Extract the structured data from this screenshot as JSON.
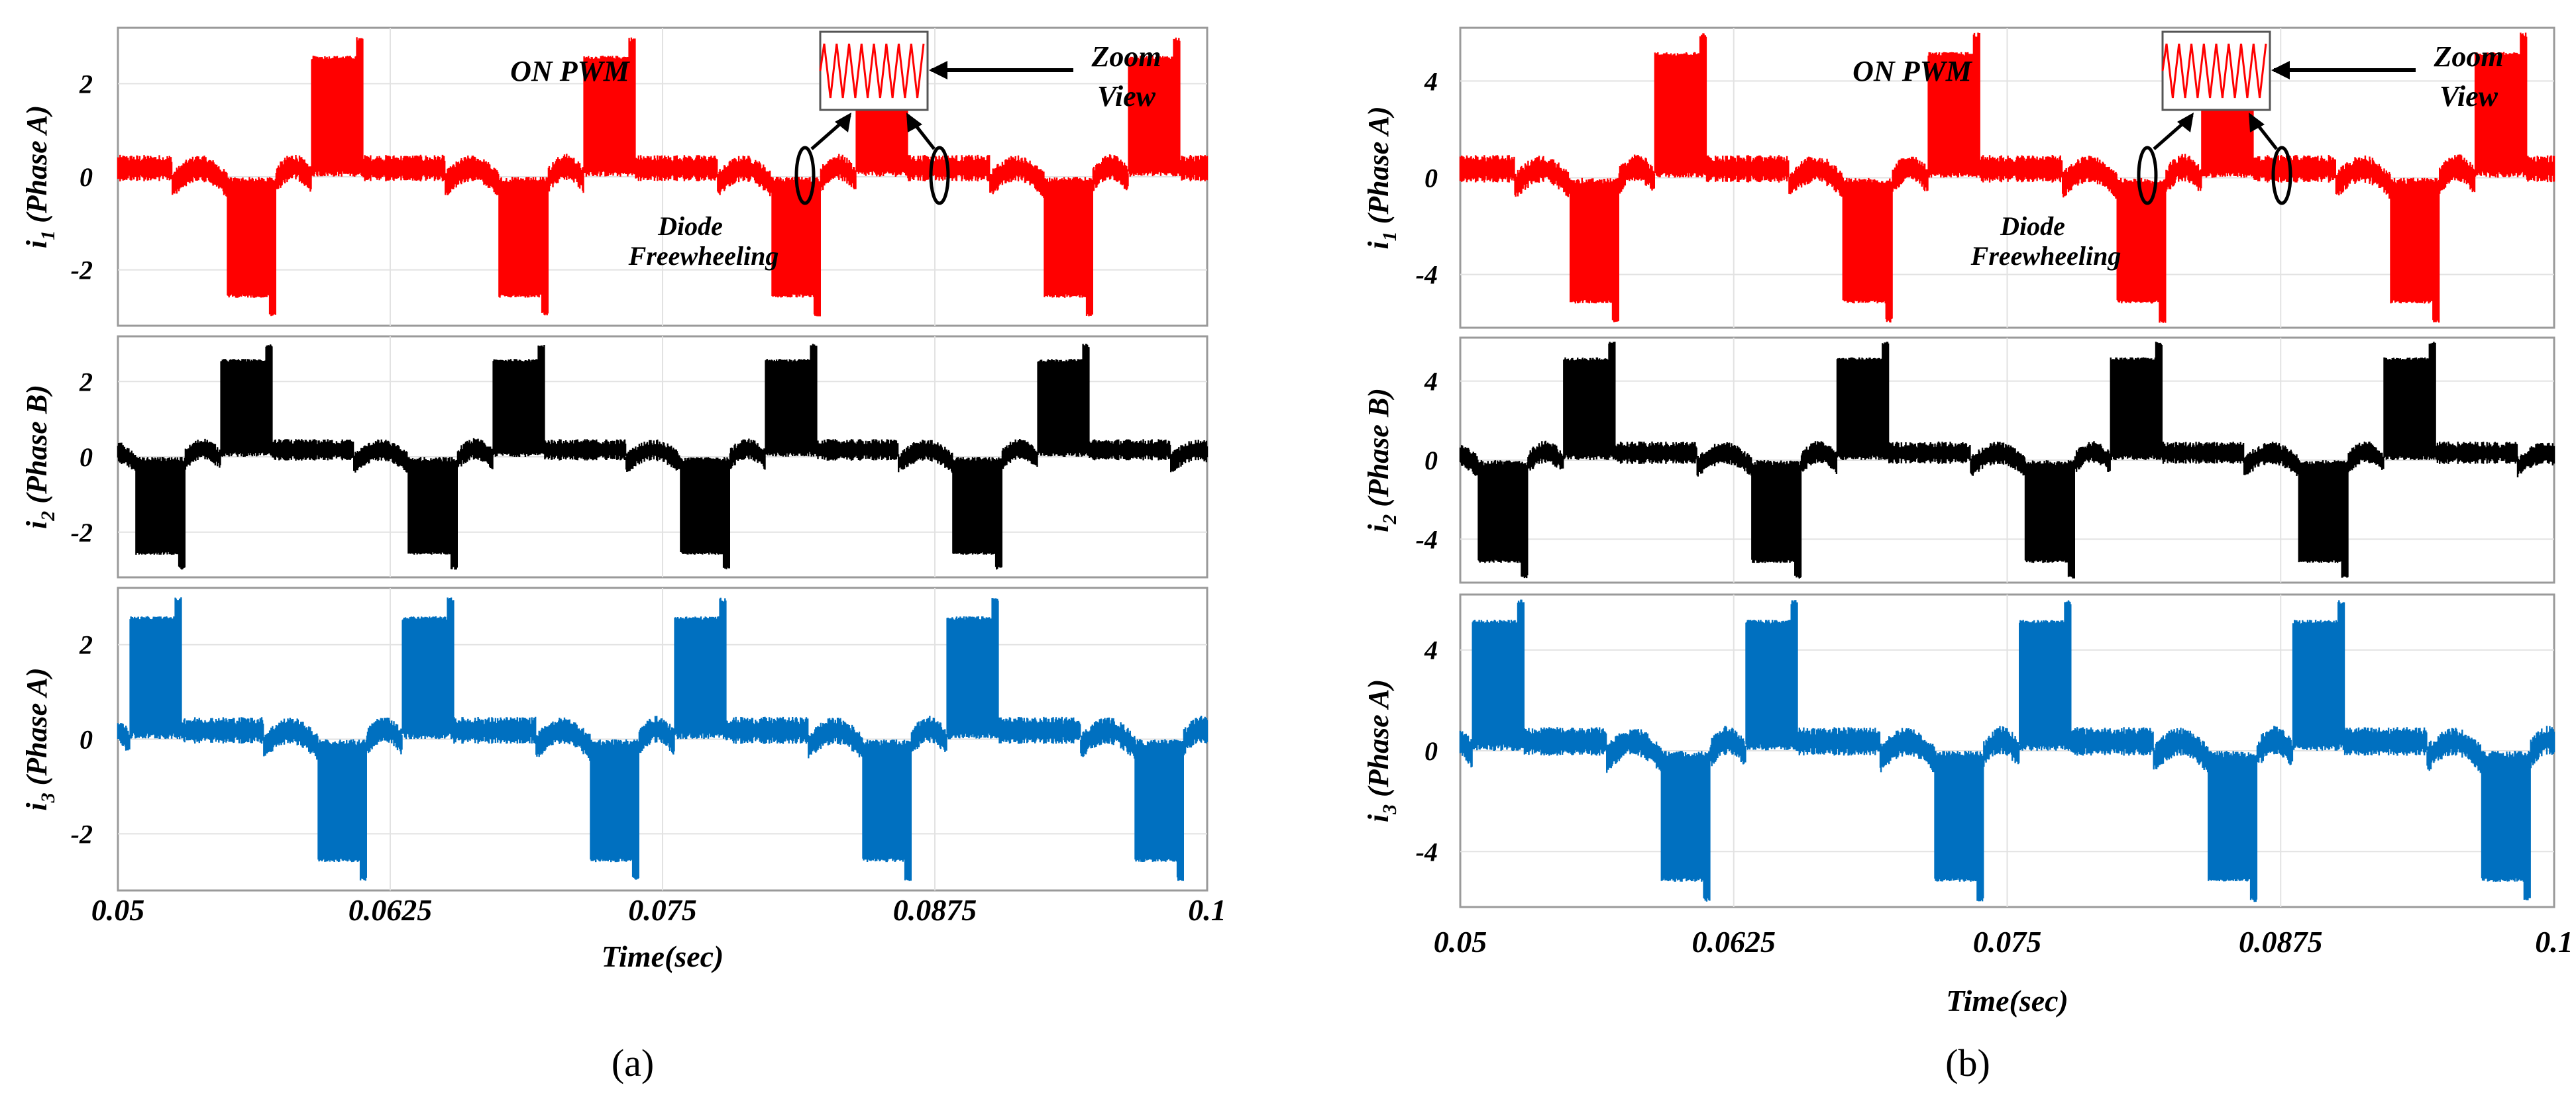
{
  "chart_data": [
    {
      "panel": "a",
      "caption": "(a)",
      "type": "line",
      "xlabel": "Time(sec)",
      "xticks": [
        "0.05",
        "0.0625",
        "0.075",
        "0.0875",
        "0.1"
      ],
      "xlim": [
        0.05,
        0.1
      ],
      "period": 0.0125,
      "subplots": [
        {
          "name": "i1",
          "ylabel_main": "i",
          "ylabel_sub": "1",
          "ylabel_rest": " (Phase A)",
          "color": "#ff0000",
          "ylim": [
            -3.2,
            3.2
          ],
          "yticks": [
            "2",
            "0",
            "-2"
          ],
          "amplitude": 2.6,
          "spike": 3.0,
          "offset": 0.0
        },
        {
          "name": "i2",
          "ylabel_main": "i",
          "ylabel_sub": "2",
          "ylabel_rest": " (Phase B)",
          "color": "#000000",
          "ylim": [
            -3.2,
            3.2
          ],
          "yticks": [
            "2",
            "0",
            "-2"
          ],
          "amplitude": 2.6,
          "spike": 3.0,
          "offset": -0.004167
        },
        {
          "name": "i3",
          "ylabel_main": "i",
          "ylabel_sub": "3",
          "ylabel_rest": " (Phase A)",
          "color": "#0070c0",
          "ylim": [
            -3.2,
            3.2
          ],
          "yticks": [
            "2",
            "0",
            "-2"
          ],
          "amplitude": 2.6,
          "spike": 3.0,
          "offset": -0.008333
        }
      ],
      "annotations": {
        "on_pwm": "ON PWM",
        "zoom_line1": "Zoom",
        "zoom_line2": "View",
        "diode_line1": "Diode",
        "diode_line2": "Freewheeling"
      }
    },
    {
      "panel": "b",
      "caption": "(b)",
      "type": "line",
      "xlabel": "Time(sec)",
      "xticks": [
        "0.05",
        "0.0625",
        "0.075",
        "0.0875",
        "0.1"
      ],
      "xlim": [
        0.05,
        0.1
      ],
      "period": 0.0125,
      "subplots": [
        {
          "name": "i1",
          "ylabel_main": "i",
          "ylabel_sub": "1",
          "ylabel_rest": " (Phase A)",
          "color": "#ff0000",
          "ylim": [
            -6.2,
            6.2
          ],
          "yticks": [
            "4",
            "0",
            "-4"
          ],
          "amplitude": 5.2,
          "spike": 6.0,
          "offset": 0.0
        },
        {
          "name": "i2",
          "ylabel_main": "i",
          "ylabel_sub": "2",
          "ylabel_rest": " (Phase B)",
          "color": "#000000",
          "ylim": [
            -6.2,
            6.2
          ],
          "yticks": [
            "4",
            "0",
            "-4"
          ],
          "amplitude": 5.2,
          "spike": 6.0,
          "offset": -0.004167
        },
        {
          "name": "i3",
          "ylabel_main": "i",
          "ylabel_sub": "3",
          "ylabel_rest": " (Phase A)",
          "color": "#0070c0",
          "ylim": [
            -6.2,
            6.2
          ],
          "yticks": [
            "4",
            "0",
            "-4"
          ],
          "amplitude": 5.2,
          "spike": 6.0,
          "offset": -0.008333
        }
      ],
      "annotations": {
        "on_pwm": "ON PWM",
        "zoom_line1": "Zoom",
        "zoom_line2": "View",
        "diode_line1": "Diode",
        "diode_line2": "Freewheeling"
      }
    }
  ]
}
